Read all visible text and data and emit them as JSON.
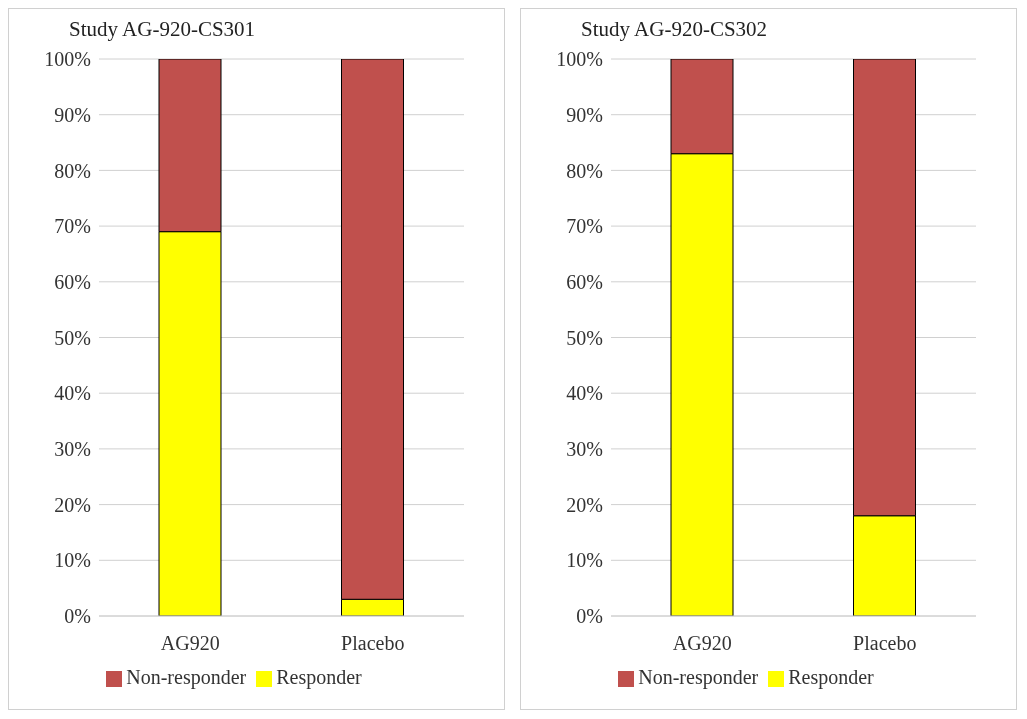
{
  "chart_data": [
    {
      "type": "bar",
      "title": "Study AG-920-CS301",
      "categories": [
        "AG920",
        "Placebo"
      ],
      "stacked": true,
      "series": [
        {
          "name": "Responder",
          "color": "#ffff00",
          "values": [
            69,
            3
          ]
        },
        {
          "name": "Non-responder",
          "color": "#c0504d",
          "values": [
            31,
            97
          ]
        }
      ],
      "ylim": [
        0,
        100
      ],
      "yticks": [
        {
          "value": 0,
          "label": "0%"
        },
        {
          "value": 10,
          "label": "10%"
        },
        {
          "value": 20,
          "label": "20%"
        },
        {
          "value": 30,
          "label": "30%"
        },
        {
          "value": 40,
          "label": "40%"
        },
        {
          "value": 50,
          "label": "50%"
        },
        {
          "value": 60,
          "label": "60%"
        },
        {
          "value": 70,
          "label": "70%"
        },
        {
          "value": 80,
          "label": "80%"
        },
        {
          "value": 90,
          "label": "90%"
        },
        {
          "value": 100,
          "label": "100%"
        }
      ],
      "grid": "y",
      "legend": "bottom"
    },
    {
      "type": "bar",
      "title": "Study AG-920-CS302",
      "categories": [
        "AG920",
        "Placebo"
      ],
      "stacked": true,
      "series": [
        {
          "name": "Responder",
          "color": "#ffff00",
          "values": [
            83,
            18
          ]
        },
        {
          "name": "Non-responder",
          "color": "#c0504d",
          "values": [
            17,
            82
          ]
        }
      ],
      "ylim": [
        0,
        100
      ],
      "yticks": [
        {
          "value": 0,
          "label": "0%"
        },
        {
          "value": 10,
          "label": "10%"
        },
        {
          "value": 20,
          "label": "20%"
        },
        {
          "value": 30,
          "label": "30%"
        },
        {
          "value": 40,
          "label": "40%"
        },
        {
          "value": 50,
          "label": "50%"
        },
        {
          "value": 60,
          "label": "60%"
        },
        {
          "value": 70,
          "label": "70%"
        },
        {
          "value": 80,
          "label": "80%"
        },
        {
          "value": 90,
          "label": "90%"
        },
        {
          "value": 100,
          "label": "100%"
        }
      ],
      "grid": "y",
      "legend": "bottom"
    }
  ]
}
